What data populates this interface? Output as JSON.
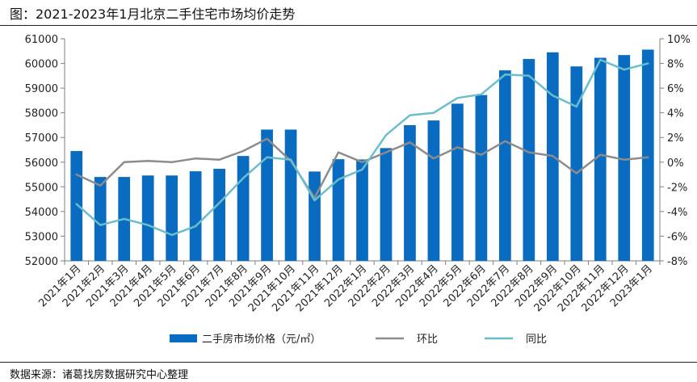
{
  "title": "图：2021-2023年1月北京二手住宅市场均价走势",
  "source": "数据来源：诸葛找房数据研究中心整理",
  "colors": {
    "bar": "#0a6cc0",
    "mom": "#8c8c8c",
    "yoy": "#6cbdcc",
    "axis": "#7f7f7f"
  },
  "chart_data": {
    "type": "bar",
    "categories": [
      "2021年1月",
      "2021年2月",
      "2021年3月",
      "2021年4月",
      "2021年5月",
      "2021年6月",
      "2021年7月",
      "2021年8月",
      "2021年9月",
      "2021年10月",
      "2021年11月",
      "2021年12月",
      "2022年1月",
      "2022年2月",
      "2022年3月",
      "2022年4月",
      "2022年5月",
      "2022年6月",
      "2022年7月",
      "2022年8月",
      "2022年9月",
      "2022年10月",
      "2022年11月",
      "2022年12月",
      "2023年1月"
    ],
    "ylim": [
      52000,
      61000
    ],
    "yticks": [
      52000,
      53000,
      54000,
      55000,
      56000,
      57000,
      58000,
      59000,
      60000,
      61000
    ],
    "y2lim": [
      -8,
      10
    ],
    "y2ticks": [
      -8,
      -6,
      -4,
      -2,
      0,
      2,
      4,
      6,
      8,
      10
    ],
    "y2tick_labels": [
      "-8%",
      "-6%",
      "-4%",
      "-2%",
      "0%",
      "2%",
      "4%",
      "6%",
      "8%",
      "10%"
    ],
    "series": [
      {
        "name": "二手房市场价格（元/㎡）",
        "type": "bar",
        "axis": "left",
        "values": [
          56450,
          55400,
          55400,
          55460,
          55460,
          55630,
          55730,
          56250,
          57320,
          57320,
          55620,
          56120,
          56110,
          56570,
          57500,
          57690,
          58370,
          58720,
          59720,
          60180,
          60450,
          59880,
          60230,
          60340,
          60560
        ]
      },
      {
        "name": "环比",
        "type": "line",
        "axis": "right",
        "values": [
          -1.0,
          -1.9,
          0.0,
          0.1,
          0.0,
          0.3,
          0.2,
          0.9,
          1.9,
          0.1,
          -2.9,
          0.8,
          0.0,
          0.8,
          1.6,
          0.3,
          1.2,
          0.6,
          1.7,
          0.8,
          0.5,
          -0.9,
          0.6,
          0.2,
          0.4
        ]
      },
      {
        "name": "同比",
        "type": "line",
        "axis": "right",
        "values": [
          -3.4,
          -5.1,
          -4.6,
          -5.1,
          -5.9,
          -5.2,
          -3.3,
          -1.3,
          0.4,
          0.2,
          -3.1,
          -1.4,
          -0.6,
          2.2,
          3.8,
          4.0,
          5.2,
          5.5,
          7.1,
          7.0,
          5.4,
          4.5,
          8.3,
          7.5,
          8.0
        ]
      }
    ],
    "legend_position": "bottom",
    "grid": false
  }
}
